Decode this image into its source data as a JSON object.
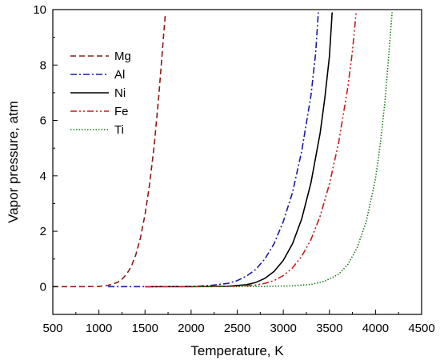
{
  "chart_data": {
    "type": "line",
    "title": "",
    "xlabel": "Temperature, K",
    "ylabel": "Vapor pressure, atm",
    "xlim": [
      500,
      4500
    ],
    "ylim": [
      -1,
      10
    ],
    "x_ticks": [
      "500",
      "1000",
      "1500",
      "2000",
      "2500",
      "3000",
      "3500",
      "4000",
      "4500"
    ],
    "y_ticks": [
      "0",
      "2",
      "4",
      "6",
      "8",
      "10"
    ],
    "grid": false,
    "legend_position": "top-left",
    "series": [
      {
        "name": "Mg",
        "color": "#8b1a1a",
        "dash": "dashed",
        "x": [
          500,
          800,
          1000,
          1100,
          1200,
          1250,
          1300,
          1350,
          1400,
          1450,
          1500,
          1550,
          1600,
          1650,
          1700,
          1720
        ],
        "y": [
          0,
          0,
          0.01,
          0.05,
          0.15,
          0.27,
          0.45,
          0.72,
          1.15,
          1.75,
          2.6,
          3.7,
          5.1,
          6.9,
          9.0,
          9.8
        ]
      },
      {
        "name": "Al",
        "color": "#1a1aa6",
        "dash": "dashdot",
        "x": [
          1100,
          1500,
          2000,
          2200,
          2400,
          2500,
          2600,
          2700,
          2800,
          2900,
          3000,
          3100,
          3200,
          3300,
          3350,
          3380
        ],
        "y": [
          0,
          0,
          0.01,
          0.04,
          0.12,
          0.22,
          0.38,
          0.62,
          1.0,
          1.55,
          2.35,
          3.4,
          4.9,
          6.9,
          8.4,
          9.9
        ]
      },
      {
        "name": "Ni",
        "color": "#000000",
        "dash": "solid",
        "x": [
          1500,
          2000,
          2400,
          2600,
          2700,
          2800,
          2900,
          3000,
          3100,
          3200,
          3300,
          3400,
          3450,
          3500,
          3530
        ],
        "y": [
          0,
          0,
          0.02,
          0.07,
          0.15,
          0.3,
          0.55,
          0.95,
          1.55,
          2.45,
          3.75,
          5.55,
          6.8,
          8.3,
          9.9
        ]
      },
      {
        "name": "Fe",
        "color": "#cc1a1a",
        "dash": "dashdotdot",
        "x": [
          1500,
          2000,
          2500,
          2700,
          2800,
          2900,
          3000,
          3100,
          3200,
          3300,
          3400,
          3500,
          3600,
          3700,
          3750,
          3790
        ],
        "y": [
          0,
          0,
          0.02,
          0.06,
          0.12,
          0.22,
          0.4,
          0.68,
          1.1,
          1.7,
          2.55,
          3.7,
          5.2,
          7.2,
          8.5,
          9.9
        ]
      },
      {
        "name": "Ti",
        "color": "#1a7a1a",
        "dash": "dotted",
        "x": [
          2000,
          2800,
          3100,
          3300,
          3450,
          3600,
          3700,
          3800,
          3900,
          4000,
          4050,
          4100,
          4150,
          4180
        ],
        "y": [
          0,
          0.01,
          0.03,
          0.08,
          0.2,
          0.45,
          0.8,
          1.4,
          2.35,
          3.9,
          5.1,
          6.6,
          8.6,
          9.9
        ]
      }
    ]
  }
}
